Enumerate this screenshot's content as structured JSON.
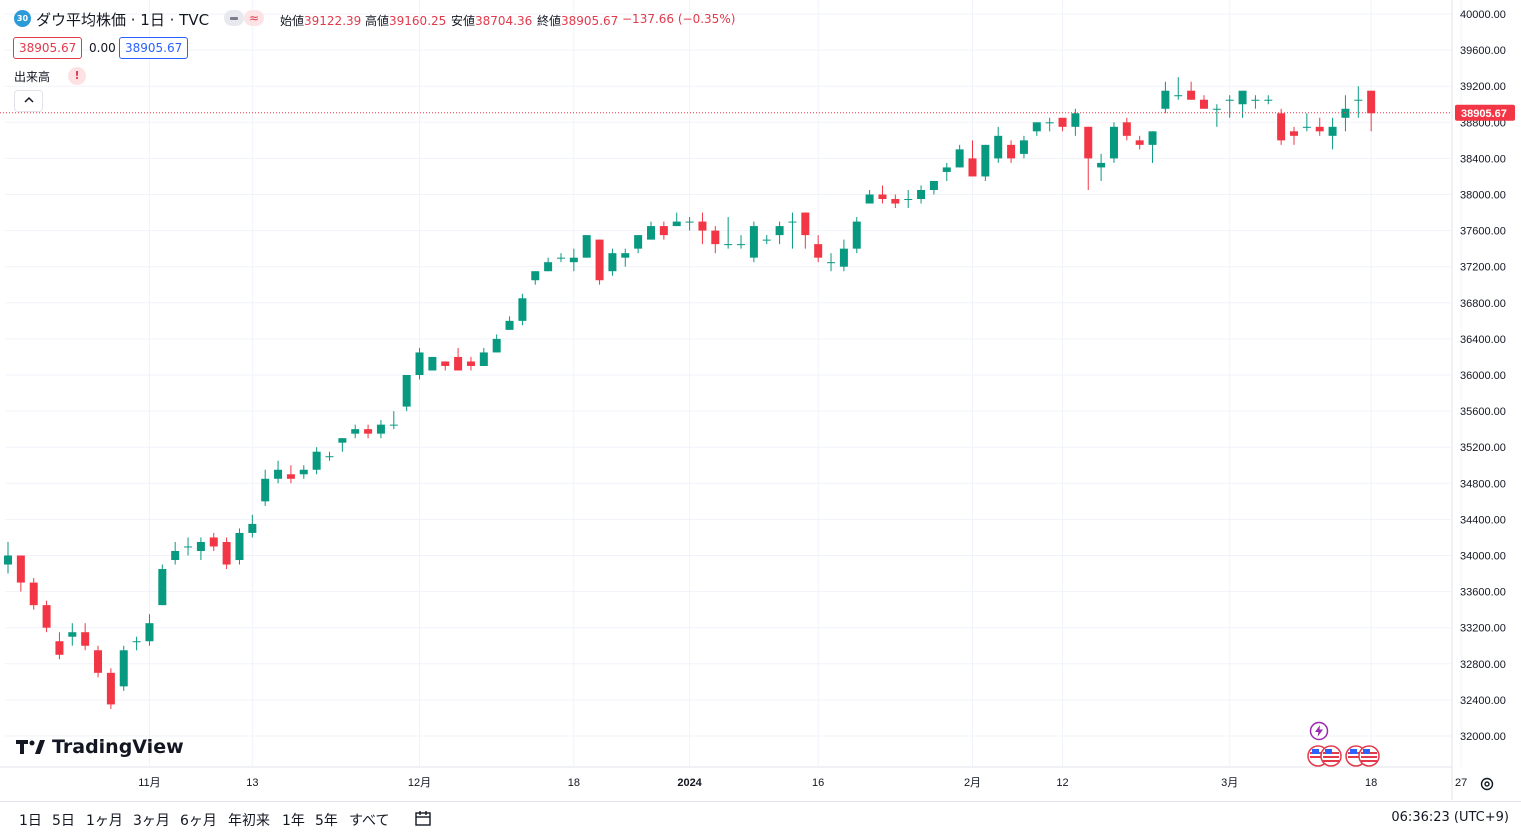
{
  "header": {
    "badge": "30",
    "title": "ダウ平均株価 · 1日 · TVC",
    "toggle_b": "≈",
    "ohlc": [
      {
        "k": "始値",
        "v": "39122.39"
      },
      {
        "k": "高値",
        "v": "39160.25"
      },
      {
        "k": "安値",
        "v": "38704.36"
      },
      {
        "k": "終値",
        "v": "38905.67"
      }
    ],
    "change": "−137.66 (−0.35%)",
    "price_red": "38905.67",
    "price_zero": "0.00",
    "price_blue": "38905.67",
    "volume_label": "出来高",
    "warning": "!",
    "collapse_glyph": "^"
  },
  "logo": "TradingView",
  "last_price_label": "38905.67",
  "colors": {
    "up": "#089981",
    "down": "#f23645",
    "grid": "#f0f3fa",
    "text": "#131722",
    "accent": "#2962ff"
  },
  "bottom": {
    "timeframes": [
      "1日",
      "5日",
      "1ヶ月",
      "3ヶ月",
      "6ヶ月",
      "年初来",
      "1年",
      "5年",
      "すべて"
    ],
    "clock": "06:36:23 (UTC+9)"
  },
  "chart_data": {
    "type": "candlestick",
    "title": "",
    "ylim": [
      31800,
      40100
    ],
    "y_ticks": [
      40000,
      39600,
      39200,
      38800,
      38400,
      38000,
      37600,
      37200,
      36800,
      36400,
      36000,
      35600,
      35200,
      34800,
      34400,
      34000,
      33600,
      33200,
      32800,
      32400,
      32000
    ],
    "y_tick_labels": [
      "40000.00",
      "39600.00",
      "39200.00",
      "38800.00",
      "38400.00",
      "38000.00",
      "37600.00",
      "37200.00",
      "36800.00",
      "36400.00",
      "36000.00",
      "35600.00",
      "35200.00",
      "34800.00",
      "34400.00",
      "34000.00",
      "33600.00",
      "33200.00",
      "32800.00",
      "32400.00",
      "32000.00"
    ],
    "x_tick_labels": [
      {
        "label": "11月",
        "index": 11
      },
      {
        "label": "13",
        "index": 19
      },
      {
        "label": "12月",
        "index": 32
      },
      {
        "label": "18",
        "index": 44
      },
      {
        "label": "2024",
        "index": 53
      },
      {
        "label": "16",
        "index": 63
      },
      {
        "label": "2月",
        "index": 75
      },
      {
        "label": "12",
        "index": 82
      },
      {
        "label": "3月",
        "index": 95
      },
      {
        "label": "18",
        "index": 106
      },
      {
        "label": "27",
        "index": 113
      }
    ],
    "last_price": 38905.67,
    "candles": [
      [
        33900,
        34150,
        33800,
        34000
      ],
      [
        34000,
        34000,
        33600,
        33700
      ],
      [
        33700,
        33750,
        33400,
        33450
      ],
      [
        33450,
        33500,
        33150,
        33200
      ],
      [
        33050,
        33150,
        32850,
        32900
      ],
      [
        33100,
        33250,
        33000,
        33150
      ],
      [
        33150,
        33250,
        32950,
        33000
      ],
      [
        32950,
        33000,
        32650,
        32700
      ],
      [
        32700,
        32750,
        32300,
        32350
      ],
      [
        32550,
        33000,
        32500,
        32950
      ],
      [
        33050,
        33100,
        32950,
        33050
      ],
      [
        33050,
        33350,
        33000,
        33250
      ],
      [
        33450,
        33900,
        33450,
        33850
      ],
      [
        33950,
        34150,
        33900,
        34050
      ],
      [
        34100,
        34200,
        34000,
        34100
      ],
      [
        34050,
        34200,
        33950,
        34150
      ],
      [
        34200,
        34250,
        34050,
        34100
      ],
      [
        34150,
        34200,
        33850,
        33900
      ],
      [
        33950,
        34300,
        33900,
        34250
      ],
      [
        34250,
        34450,
        34200,
        34350
      ],
      [
        34600,
        34950,
        34550,
        34850
      ],
      [
        34850,
        35050,
        34800,
        34950
      ],
      [
        34900,
        35000,
        34800,
        34850
      ],
      [
        34900,
        35000,
        34850,
        34950
      ],
      [
        34950,
        35200,
        34900,
        35150
      ],
      [
        35100,
        35150,
        35050,
        35100
      ],
      [
        35250,
        35300,
        35150,
        35300
      ],
      [
        35350,
        35450,
        35300,
        35400
      ],
      [
        35400,
        35450,
        35300,
        35350
      ],
      [
        35350,
        35500,
        35300,
        35450
      ],
      [
        35450,
        35600,
        35400,
        35450
      ],
      [
        35650,
        36000,
        35600,
        36000
      ],
      [
        36000,
        36300,
        35950,
        36250
      ],
      [
        36050,
        36200,
        36050,
        36200
      ],
      [
        36150,
        36150,
        36050,
        36100
      ],
      [
        36200,
        36300,
        36050,
        36050
      ],
      [
        36150,
        36200,
        36050,
        36100
      ],
      [
        36100,
        36300,
        36100,
        36250
      ],
      [
        36250,
        36450,
        36250,
        36400
      ],
      [
        36500,
        36650,
        36500,
        36600
      ],
      [
        36600,
        36900,
        36550,
        36850
      ],
      [
        37050,
        37150,
        37000,
        37150
      ],
      [
        37150,
        37300,
        37150,
        37250
      ],
      [
        37300,
        37350,
        37250,
        37300
      ],
      [
        37250,
        37400,
        37150,
        37300
      ],
      [
        37300,
        37550,
        37300,
        37550
      ],
      [
        37500,
        37500,
        37000,
        37050
      ],
      [
        37150,
        37400,
        37100,
        37350
      ],
      [
        37300,
        37400,
        37200,
        37350
      ],
      [
        37400,
        37550,
        37350,
        37550
      ],
      [
        37500,
        37700,
        37500,
        37650
      ],
      [
        37650,
        37700,
        37500,
        37550
      ],
      [
        37650,
        37800,
        37650,
        37700
      ],
      [
        37700,
        37750,
        37600,
        37700
      ],
      [
        37700,
        37800,
        37450,
        37600
      ],
      [
        37600,
        37650,
        37350,
        37450
      ],
      [
        37450,
        37750,
        37400,
        37450
      ],
      [
        37450,
        37550,
        37400,
        37450
      ],
      [
        37300,
        37700,
        37250,
        37650
      ],
      [
        37500,
        37550,
        37450,
        37500
      ],
      [
        37550,
        37700,
        37450,
        37650
      ],
      [
        37700,
        37800,
        37400,
        37700
      ],
      [
        37800,
        37800,
        37400,
        37550
      ],
      [
        37450,
        37550,
        37250,
        37300
      ],
      [
        37250,
        37350,
        37150,
        37250
      ],
      [
        37200,
        37500,
        37150,
        37400
      ],
      [
        37400,
        37750,
        37350,
        37700
      ],
      [
        37900,
        38050,
        37900,
        38000
      ],
      [
        38000,
        38100,
        37900,
        37950
      ],
      [
        37950,
        38000,
        37850,
        37900
      ],
      [
        37950,
        38050,
        37850,
        37950
      ],
      [
        37950,
        38100,
        37900,
        38050
      ],
      [
        38050,
        38150,
        38000,
        38150
      ],
      [
        38250,
        38350,
        38150,
        38300
      ],
      [
        38300,
        38550,
        38300,
        38500
      ],
      [
        38400,
        38600,
        38200,
        38200
      ],
      [
        38200,
        38550,
        38150,
        38550
      ],
      [
        38400,
        38750,
        38350,
        38650
      ],
      [
        38550,
        38600,
        38350,
        38400
      ],
      [
        38450,
        38650,
        38400,
        38600
      ],
      [
        38700,
        38800,
        38650,
        38800
      ],
      [
        38800,
        38850,
        38700,
        38800
      ],
      [
        38850,
        38850,
        38700,
        38750
      ],
      [
        38750,
        38950,
        38650,
        38900
      ],
      [
        38750,
        38750,
        38050,
        38400
      ],
      [
        38300,
        38450,
        38150,
        38350
      ],
      [
        38400,
        38800,
        38350,
        38750
      ],
      [
        38800,
        38850,
        38600,
        38650
      ],
      [
        38600,
        38650,
        38500,
        38550
      ],
      [
        38550,
        38700,
        38350,
        38700
      ],
      [
        38950,
        39250,
        38900,
        39150
      ],
      [
        39100,
        39300,
        39050,
        39100
      ],
      [
        39150,
        39250,
        39050,
        39050
      ],
      [
        39050,
        39100,
        38950,
        38950
      ],
      [
        38950,
        39000,
        38750,
        38950
      ],
      [
        39050,
        39100,
        38850,
        39050
      ],
      [
        39000,
        39100,
        38850,
        39150
      ],
      [
        39050,
        39100,
        38950,
        39050
      ],
      [
        39050,
        39100,
        39000,
        39050
      ],
      [
        38900,
        38950,
        38550,
        38600
      ],
      [
        38700,
        38750,
        38550,
        38650
      ],
      [
        38750,
        38900,
        38700,
        38750
      ],
      [
        38750,
        38850,
        38650,
        38700
      ],
      [
        38650,
        38850,
        38500,
        38750
      ],
      [
        38850,
        39100,
        38700,
        38950
      ],
      [
        39050,
        39200,
        38850,
        39050
      ],
      [
        39150,
        39150,
        38700,
        38900
      ]
    ]
  }
}
